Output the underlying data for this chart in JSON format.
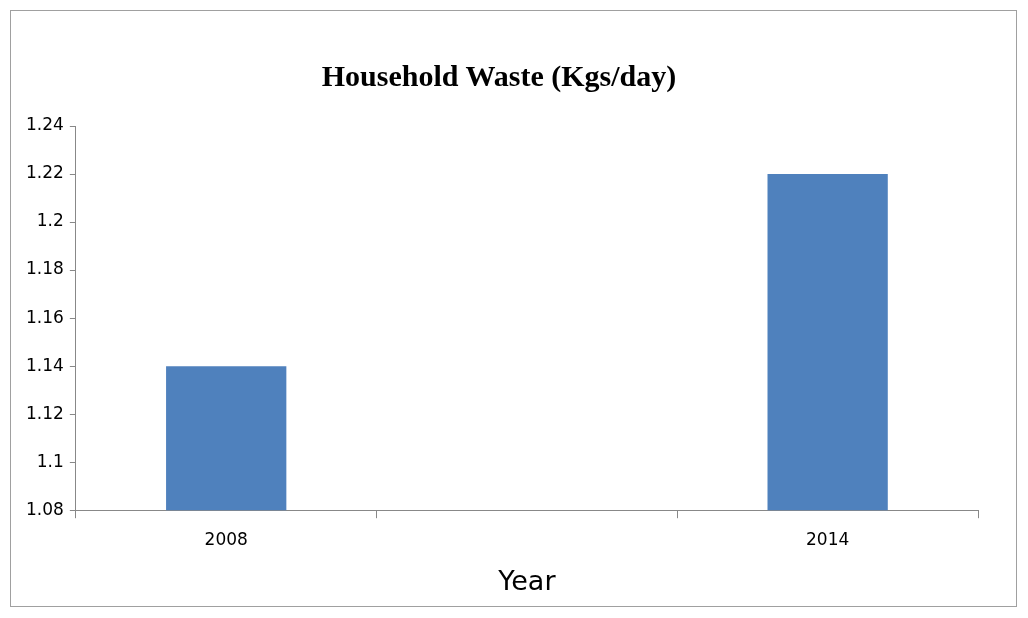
{
  "chart_data": {
    "type": "bar",
    "title": "Household Waste (Kgs/day)",
    "xlabel": "Year",
    "categories": [
      "2008",
      null,
      "2014"
    ],
    "values": [
      1.14,
      null,
      1.22
    ],
    "color": "#4f81bd",
    "ylim": [
      1.08,
      1.24
    ],
    "yticks": [
      1.08,
      1.1,
      1.12,
      1.14,
      1.16,
      1.18,
      1.2,
      1.22,
      1.24
    ],
    "grid": false,
    "legend": false
  }
}
